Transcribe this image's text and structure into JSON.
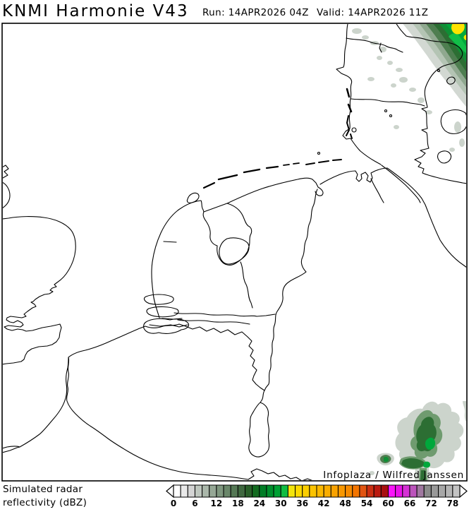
{
  "header": {
    "title": "KNMI Harmonie V43",
    "run_label": "Run:",
    "run_value": "14APR2026 04Z",
    "valid_label": "Valid:",
    "valid_value": "14APR2026 11Z"
  },
  "map": {
    "credit": "Infoplaza / Wilfred Janssen"
  },
  "legend": {
    "line1": "Simulated radar",
    "line2": "reflectivity (dBZ)"
  },
  "colorbar": {
    "min": 0,
    "step": 2,
    "tick_labels": [
      "0",
      "6",
      "12",
      "18",
      "24",
      "30",
      "36",
      "42",
      "48",
      "54",
      "60",
      "66",
      "72",
      "78"
    ],
    "cell_colors": [
      "#ffffff",
      "#e9e9e9",
      "#d4d4d4",
      "#bfc7bf",
      "#aab7aa",
      "#95a795",
      "#7f977f",
      "#6a876a",
      "#557855",
      "#406840",
      "#2a5f2a",
      "#136b20",
      "#007d26",
      "#008f2d",
      "#00a134",
      "#10bd42",
      "#f2e40c",
      "#fcd900",
      "#fbce00",
      "#fbc300",
      "#fab800",
      "#f9ad00",
      "#f9a200",
      "#f89700",
      "#f68a00",
      "#f37500",
      "#e25411",
      "#cb2f12",
      "#ba1a10",
      "#a81010",
      "#fa14fa",
      "#e912e9",
      "#d531d5",
      "#bc53bc",
      "#a078a0",
      "#8b8b8b",
      "#999999",
      "#a7a7a7",
      "#b5b5b5",
      "#c3c3c3"
    ]
  }
}
